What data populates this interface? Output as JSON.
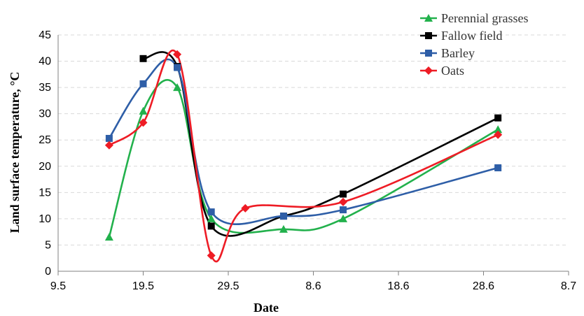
{
  "chart_data": {
    "type": "line",
    "title": "",
    "xlabel": "Date",
    "ylabel": "Land surface temperature, °C",
    "x_tick_labels": [
      "9.5",
      "19.5",
      "29.5",
      "8.6",
      "18.6",
      "28.6",
      "8.7"
    ],
    "x_tick_days": [
      0,
      10,
      20,
      30,
      40,
      50,
      60
    ],
    "xlim": [
      0,
      60
    ],
    "ylim": [
      0,
      45
    ],
    "y_ticks": [
      0,
      5,
      10,
      15,
      20,
      25,
      30,
      35,
      40,
      45
    ],
    "grid": true,
    "grid_axis": "y",
    "legend_position": "top-right",
    "series": [
      {
        "name": "Perennial grasses",
        "color": "#22b14c",
        "marker": "triangle",
        "x": [
          6,
          10,
          14,
          18,
          26.5,
          33.5,
          51.7
        ],
        "y": [
          6.5,
          30.5,
          35,
          10,
          8,
          10,
          27
        ]
      },
      {
        "name": "Fallow field",
        "color": "#000000",
        "marker": "square",
        "x": [
          10,
          14,
          18,
          26.5,
          33.5,
          51.7
        ],
        "y": [
          40.5,
          39,
          8.6,
          10.5,
          14.7,
          29.2
        ]
      },
      {
        "name": "Barley",
        "color": "#2e5ea7",
        "marker": "square",
        "x": [
          6,
          10,
          14,
          18,
          26.5,
          33.5,
          51.7
        ],
        "y": [
          25.3,
          35.7,
          38.8,
          11.3,
          10.5,
          11.7,
          19.7
        ]
      },
      {
        "name": "Oats",
        "color": "#ee1c25",
        "marker": "diamond",
        "x": [
          6,
          10,
          14,
          18,
          22,
          33.5,
          51.7
        ],
        "y": [
          24,
          28.3,
          41.3,
          3,
          12,
          13.2,
          26
        ]
      }
    ]
  }
}
